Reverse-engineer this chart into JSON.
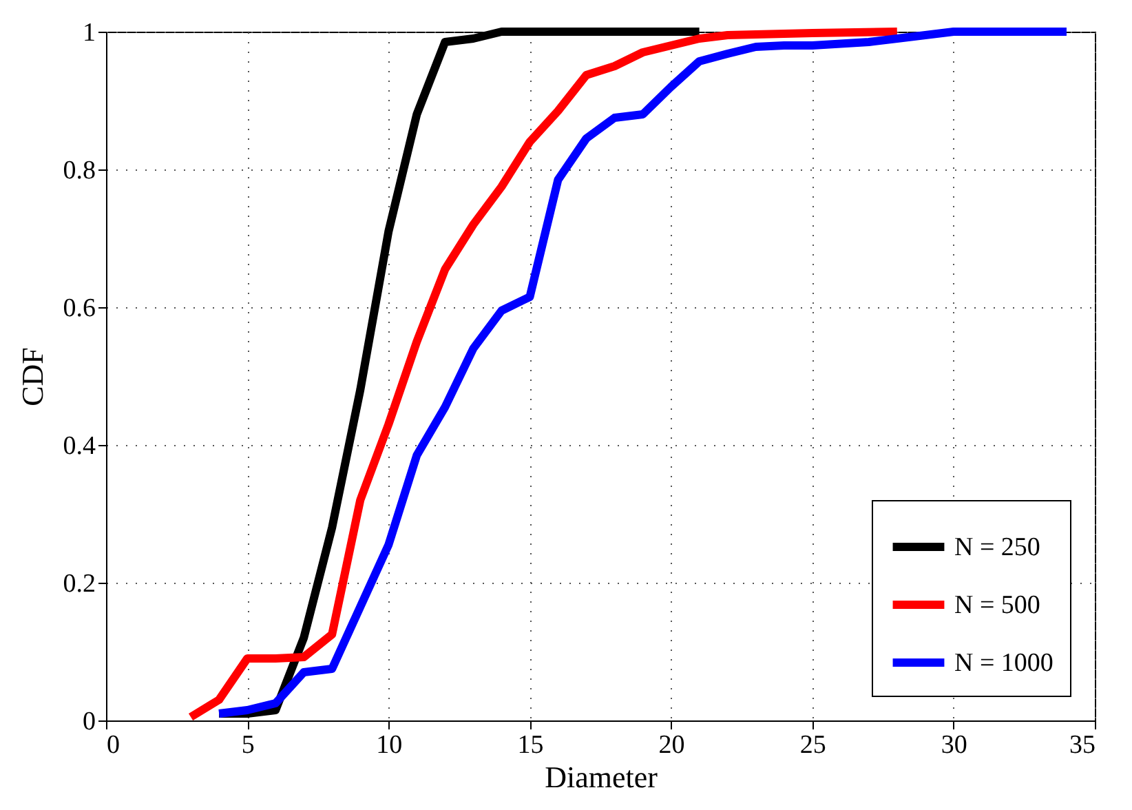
{
  "chart_data": {
    "type": "line",
    "xlabel": "Diameter",
    "ylabel": "CDF",
    "xlim": [
      0,
      35
    ],
    "ylim": [
      0,
      1
    ],
    "xticks": [
      0,
      5,
      10,
      15,
      20,
      25,
      30,
      35
    ],
    "yticks": [
      0,
      0.2,
      0.4,
      0.6,
      0.8,
      1
    ],
    "grid": true,
    "legend": "bottom right",
    "line_style": "solid",
    "marker": "none",
    "series": [
      {
        "name": "N = 250",
        "color": "#000000",
        "x": [
          4,
          5,
          6,
          7,
          8,
          9,
          10,
          11,
          12,
          13,
          14,
          15,
          16,
          17,
          18,
          19,
          20,
          21
        ],
        "values": [
          0.01,
          0.01,
          0.015,
          0.12,
          0.28,
          0.48,
          0.71,
          0.88,
          0.985,
          0.99,
          1,
          1,
          1,
          1,
          1,
          1,
          1,
          1
        ]
      },
      {
        "name": "N = 500",
        "color": "#ff0000",
        "x": [
          3,
          4,
          5,
          6,
          7,
          8,
          9,
          10,
          11,
          12,
          13,
          14,
          15,
          16,
          17,
          18,
          19,
          20,
          21,
          22,
          25,
          28
        ],
        "values": [
          0.005,
          0.03,
          0.09,
          0.09,
          0.092,
          0.125,
          0.32,
          0.43,
          0.55,
          0.655,
          0.72,
          0.775,
          0.84,
          0.885,
          0.937,
          0.95,
          0.97,
          0.98,
          0.99,
          0.995,
          0.998,
          1
        ]
      },
      {
        "name": "N = 1000",
        "color": "#0000ff",
        "x": [
          4,
          5,
          6,
          7,
          8,
          9,
          10,
          11,
          12,
          13,
          14,
          15,
          16,
          17,
          18,
          19,
          20,
          21,
          22,
          23,
          24,
          25,
          27,
          28,
          30,
          34
        ],
        "values": [
          0.01,
          0.015,
          0.025,
          0.07,
          0.075,
          0.165,
          0.255,
          0.385,
          0.455,
          0.54,
          0.595,
          0.615,
          0.785,
          0.845,
          0.875,
          0.88,
          0.92,
          0.957,
          0.968,
          0.978,
          0.98,
          0.98,
          0.985,
          0.99,
          1,
          1
        ]
      }
    ]
  }
}
